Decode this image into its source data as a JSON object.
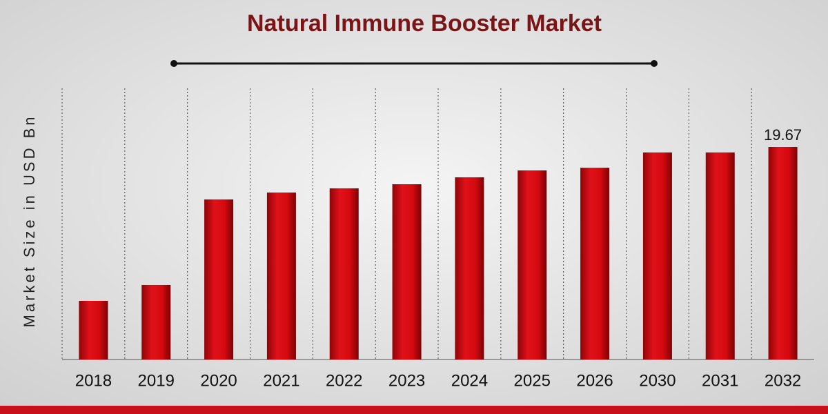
{
  "chart_data": {
    "type": "bar",
    "title": "Natural Immune Booster Market",
    "y_label": "Market Size in USD Bn",
    "categories": [
      "2018",
      "2019",
      "2020",
      "2021",
      "2022",
      "2023",
      "2024",
      "2025",
      "2026",
      "2030",
      "2031",
      "2032"
    ],
    "values": [
      5.43,
      6.9,
      14.81,
      15.45,
      15.84,
      16.22,
      16.86,
      17.5,
      17.75,
      19.16,
      19.16,
      19.67
    ],
    "value_labels": [
      null,
      null,
      null,
      null,
      null,
      null,
      null,
      null,
      null,
      null,
      null,
      "19.67"
    ],
    "color": "#d40a0f"
  }
}
